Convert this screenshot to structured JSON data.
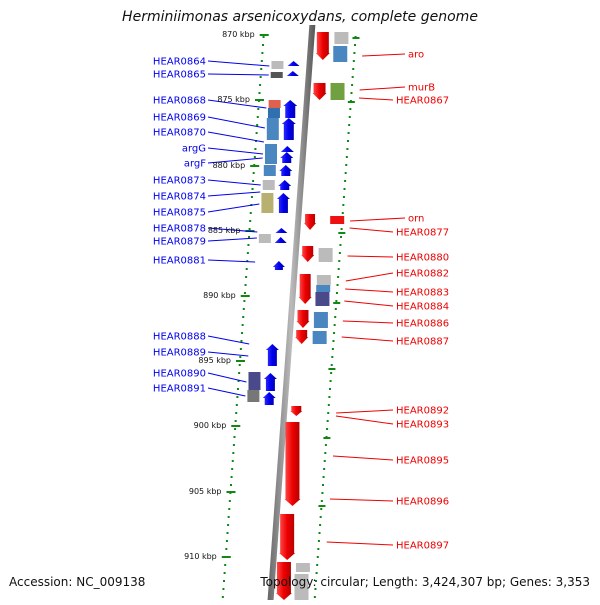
{
  "title": "Herminiimonas arsenicoxydans, complete genome",
  "accession": "Accession: NC_009138",
  "topology": "Topology: circular; Length: 3,424,307 bp; Genes: 3,353",
  "colors": {
    "forward": "#0000ee",
    "reverse": "#ee0000",
    "backbone": "#888888",
    "tick": "#118811"
  },
  "ticks": [
    "870 kbp",
    "875 kbp",
    "880 kbp",
    "885 kbp",
    "890 kbp",
    "895 kbp",
    "900 kbp",
    "905 kbp",
    "910 kbp"
  ],
  "forward_genes": [
    "HEAR0864",
    "HEAR0865",
    "HEAR0868",
    "HEAR0869",
    "HEAR0870",
    "argG",
    "argF",
    "HEAR0873",
    "HEAR0874",
    "HEAR0875",
    "HEAR0878",
    "HEAR0879",
    "HEAR0881",
    "HEAR0888",
    "HEAR0889",
    "HEAR0890",
    "HEAR0891"
  ],
  "reverse_genes": [
    "aro",
    "murB",
    "HEAR0867",
    "orn",
    "HEAR0877",
    "HEAR0880",
    "HEAR0882",
    "HEAR0883",
    "HEAR0884",
    "HEAR0886",
    "HEAR0887",
    "HEAR0892",
    "HEAR0893",
    "HEAR0895",
    "HEAR0896",
    "HEAR0897"
  ]
}
